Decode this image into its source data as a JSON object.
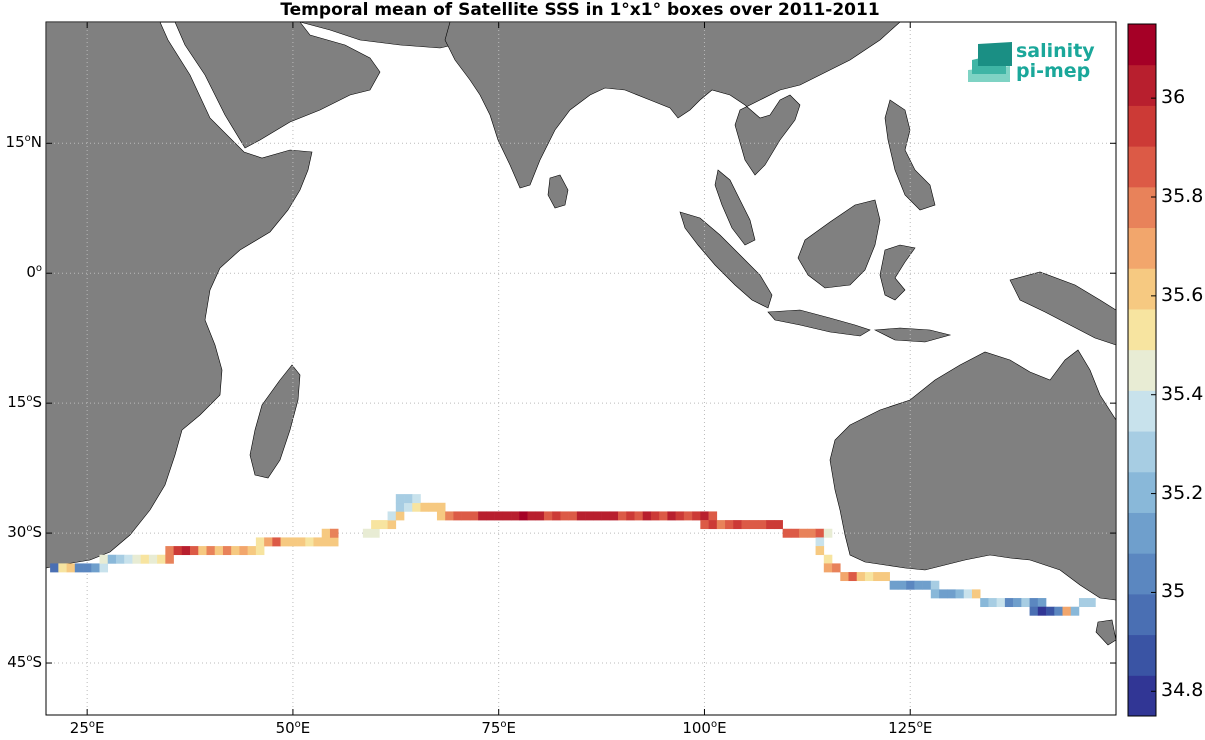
{
  "title": "Temporal mean of Satellite SSS in 1°x1° boxes over 2011-2011",
  "logo": {
    "line1": "salinity",
    "line2": "pi-mep"
  },
  "lat_ticks": [
    {
      "label": "15",
      "sup": "o",
      "hemi": "N",
      "lat": 15
    },
    {
      "label": "0",
      "sup": "o",
      "hemi": "",
      "lat": 0
    },
    {
      "label": "15",
      "sup": "o",
      "hemi": "S",
      "lat": -15
    },
    {
      "label": "30",
      "sup": "o",
      "hemi": "S",
      "lat": -30
    },
    {
      "label": "45",
      "sup": "o",
      "hemi": "S",
      "lat": -45
    }
  ],
  "lon_ticks": [
    {
      "label": "25",
      "sup": "o",
      "hemi": "E",
      "lon": 25
    },
    {
      "label": "50",
      "sup": "o",
      "hemi": "E",
      "lon": 50
    },
    {
      "label": "75",
      "sup": "o",
      "hemi": "E",
      "lon": 75
    },
    {
      "label": "100",
      "sup": "o",
      "hemi": "E",
      "lon": 100
    },
    {
      "label": "125",
      "sup": "o",
      "hemi": "E",
      "lon": 125
    }
  ],
  "colorbar": {
    "min": 34.75,
    "max": 36.15,
    "tick_labels": [
      "34.8",
      "35",
      "35.2",
      "35.4",
      "35.6",
      "35.8",
      "36"
    ],
    "tick_values": [
      34.8,
      35.0,
      35.2,
      35.4,
      35.6,
      35.8,
      36.0
    ],
    "colors": [
      "#313695",
      "#3a54a4",
      "#4a6fb3",
      "#5b87c0",
      "#6f9fcc",
      "#89b8d9",
      "#a7cde3",
      "#c8e2ec",
      "#e8ecd4",
      "#f7e4a0",
      "#f6c981",
      "#f2a66c",
      "#e8825a",
      "#dc5a46",
      "#cc3a36",
      "#b81f2e",
      "#a50026"
    ]
  },
  "land_color": "#808080",
  "chart_data": {
    "type": "heatmap",
    "title": "Temporal mean of Satellite SSS in 1°x1° boxes over 2011-2011",
    "xlabel": "",
    "ylabel": "",
    "xlim": [
      20,
      150
    ],
    "ylim": [
      -51,
      29
    ],
    "colorbar_range": [
      34.75,
      36.15
    ],
    "units_note": "",
    "cells": [
      {
        "lon": 21,
        "lat": -34,
        "v": 34.95
      },
      {
        "lon": 22,
        "lat": -34,
        "v": 35.55
      },
      {
        "lon": 23,
        "lat": -34,
        "v": 35.65
      },
      {
        "lon": 24,
        "lat": -34,
        "v": 35.0
      },
      {
        "lon": 25,
        "lat": -34,
        "v": 35.0
      },
      {
        "lon": 26,
        "lat": -34,
        "v": 35.1
      },
      {
        "lon": 27,
        "lat": -34,
        "v": 35.4
      },
      {
        "lon": 27,
        "lat": -33,
        "v": 35.45
      },
      {
        "lon": 28,
        "lat": -33,
        "v": 35.2
      },
      {
        "lon": 29,
        "lat": -33,
        "v": 35.3
      },
      {
        "lon": 30,
        "lat": -33,
        "v": 35.35
      },
      {
        "lon": 31,
        "lat": -33,
        "v": 35.45
      },
      {
        "lon": 32,
        "lat": -33,
        "v": 35.5
      },
      {
        "lon": 33,
        "lat": -33,
        "v": 35.45
      },
      {
        "lon": 34,
        "lat": -33,
        "v": 35.55
      },
      {
        "lon": 35,
        "lat": -33,
        "v": 35.75
      },
      {
        "lon": 35,
        "lat": -32,
        "v": 35.8
      },
      {
        "lon": 36,
        "lat": -32,
        "v": 35.95
      },
      {
        "lon": 37,
        "lat": -32,
        "v": 36.05
      },
      {
        "lon": 38,
        "lat": -32,
        "v": 35.85
      },
      {
        "lon": 39,
        "lat": -32,
        "v": 35.6
      },
      {
        "lon": 40,
        "lat": -32,
        "v": 35.75
      },
      {
        "lon": 41,
        "lat": -32,
        "v": 35.65
      },
      {
        "lon": 42,
        "lat": -32,
        "v": 35.8
      },
      {
        "lon": 43,
        "lat": -32,
        "v": 35.6
      },
      {
        "lon": 44,
        "lat": -32,
        "v": 35.7
      },
      {
        "lon": 45,
        "lat": -32,
        "v": 35.6
      },
      {
        "lon": 46,
        "lat": -32,
        "v": 35.55
      },
      {
        "lon": 46,
        "lat": -31,
        "v": 35.5
      },
      {
        "lon": 47,
        "lat": -31,
        "v": 35.7
      },
      {
        "lon": 48,
        "lat": -31,
        "v": 35.9
      },
      {
        "lon": 49,
        "lat": -31,
        "v": 35.65
      },
      {
        "lon": 50,
        "lat": -31,
        "v": 35.6
      },
      {
        "lon": 51,
        "lat": -31,
        "v": 35.65
      },
      {
        "lon": 52,
        "lat": -31,
        "v": 35.55
      },
      {
        "lon": 53,
        "lat": -31,
        "v": 35.6
      },
      {
        "lon": 54,
        "lat": -31,
        "v": 35.65
      },
      {
        "lon": 55,
        "lat": -31,
        "v": 35.6
      },
      {
        "lon": 54,
        "lat": -30,
        "v": 35.65
      },
      {
        "lon": 55,
        "lat": -30,
        "v": 35.75
      },
      {
        "lon": 59,
        "lat": -30,
        "v": 35.45
      },
      {
        "lon": 60,
        "lat": -30,
        "v": 35.45
      },
      {
        "lon": 60,
        "lat": -29,
        "v": 35.5
      },
      {
        "lon": 61,
        "lat": -29,
        "v": 35.55
      },
      {
        "lon": 62,
        "lat": -29,
        "v": 35.6
      },
      {
        "lon": 62,
        "lat": -28,
        "v": 35.35
      },
      {
        "lon": 63,
        "lat": -28,
        "v": 35.6
      },
      {
        "lon": 63,
        "lat": -27,
        "v": 35.3
      },
      {
        "lon": 64,
        "lat": -27,
        "v": 35.35
      },
      {
        "lon": 65,
        "lat": -27,
        "v": 35.55
      },
      {
        "lon": 66,
        "lat": -27,
        "v": 35.6
      },
      {
        "lon": 67,
        "lat": -27,
        "v": 35.6
      },
      {
        "lon": 68,
        "lat": -27,
        "v": 35.6
      },
      {
        "lon": 63,
        "lat": -26,
        "v": 35.3
      },
      {
        "lon": 64,
        "lat": -26,
        "v": 35.3
      },
      {
        "lon": 65,
        "lat": -26,
        "v": 35.35
      },
      {
        "lon": 68,
        "lat": -28,
        "v": 35.65
      },
      {
        "lon": 69,
        "lat": -28,
        "v": 35.8
      },
      {
        "lon": 70,
        "lat": -28,
        "v": 35.9
      },
      {
        "lon": 71,
        "lat": -28,
        "v": 35.85
      },
      {
        "lon": 72,
        "lat": -28,
        "v": 35.9
      },
      {
        "lon": 73,
        "lat": -28,
        "v": 36.0
      },
      {
        "lon": 74,
        "lat": -28,
        "v": 36.05
      },
      {
        "lon": 75,
        "lat": -28,
        "v": 36.0
      },
      {
        "lon": 76,
        "lat": -28,
        "v": 36.05
      },
      {
        "lon": 77,
        "lat": -28,
        "v": 36.05
      },
      {
        "lon": 78,
        "lat": -28,
        "v": 36.1
      },
      {
        "lon": 79,
        "lat": -28,
        "v": 36.05
      },
      {
        "lon": 80,
        "lat": -28,
        "v": 36.0
      },
      {
        "lon": 81,
        "lat": -28,
        "v": 35.9
      },
      {
        "lon": 82,
        "lat": -28,
        "v": 35.95
      },
      {
        "lon": 83,
        "lat": -28,
        "v": 35.85
      },
      {
        "lon": 84,
        "lat": -28,
        "v": 35.9
      },
      {
        "lon": 85,
        "lat": -28,
        "v": 36.0
      },
      {
        "lon": 86,
        "lat": -28,
        "v": 36.0
      },
      {
        "lon": 87,
        "lat": -28,
        "v": 36.05
      },
      {
        "lon": 88,
        "lat": -28,
        "v": 36.05
      },
      {
        "lon": 89,
        "lat": -28,
        "v": 36.0
      },
      {
        "lon": 90,
        "lat": -28,
        "v": 35.9
      },
      {
        "lon": 91,
        "lat": -28,
        "v": 35.95
      },
      {
        "lon": 92,
        "lat": -28,
        "v": 35.9
      },
      {
        "lon": 93,
        "lat": -28,
        "v": 36.0
      },
      {
        "lon": 94,
        "lat": -28,
        "v": 35.95
      },
      {
        "lon": 95,
        "lat": -28,
        "v": 35.9
      },
      {
        "lon": 96,
        "lat": -28,
        "v": 36.0
      },
      {
        "lon": 97,
        "lat": -28,
        "v": 35.95
      },
      {
        "lon": 98,
        "lat": -28,
        "v": 35.9
      },
      {
        "lon": 99,
        "lat": -28,
        "v": 35.95
      },
      {
        "lon": 100,
        "lat": -28,
        "v": 36.0
      },
      {
        "lon": 101,
        "lat": -28,
        "v": 35.85
      },
      {
        "lon": 100,
        "lat": -29,
        "v": 35.85
      },
      {
        "lon": 101,
        "lat": -29,
        "v": 35.95
      },
      {
        "lon": 102,
        "lat": -29,
        "v": 35.8
      },
      {
        "lon": 103,
        "lat": -29,
        "v": 35.85
      },
      {
        "lon": 104,
        "lat": -29,
        "v": 35.95
      },
      {
        "lon": 105,
        "lat": -29,
        "v": 35.9
      },
      {
        "lon": 106,
        "lat": -29,
        "v": 35.85
      },
      {
        "lon": 107,
        "lat": -29,
        "v": 35.9
      },
      {
        "lon": 108,
        "lat": -29,
        "v": 35.95
      },
      {
        "lon": 109,
        "lat": -29,
        "v": 35.95
      },
      {
        "lon": 110,
        "lat": -30,
        "v": 35.85
      },
      {
        "lon": 111,
        "lat": -30,
        "v": 35.9
      },
      {
        "lon": 112,
        "lat": -30,
        "v": 35.8
      },
      {
        "lon": 113,
        "lat": -30,
        "v": 35.75
      },
      {
        "lon": 114,
        "lat": -30,
        "v": 35.9
      },
      {
        "lon": 115,
        "lat": -30,
        "v": 35.45
      },
      {
        "lon": 114,
        "lat": -31,
        "v": 35.4
      },
      {
        "lon": 114,
        "lat": -32,
        "v": 35.6
      },
      {
        "lon": 115,
        "lat": -33,
        "v": 35.55
      },
      {
        "lon": 115,
        "lat": -34,
        "v": 35.7
      },
      {
        "lon": 116,
        "lat": -34,
        "v": 35.8
      },
      {
        "lon": 117,
        "lat": -35,
        "v": 35.7
      },
      {
        "lon": 118,
        "lat": -35,
        "v": 35.85
      },
      {
        "lon": 119,
        "lat": -35,
        "v": 35.6
      },
      {
        "lon": 120,
        "lat": -35,
        "v": 35.55
      },
      {
        "lon": 121,
        "lat": -35,
        "v": 35.6
      },
      {
        "lon": 122,
        "lat": -35,
        "v": 35.65
      },
      {
        "lon": 123,
        "lat": -36,
        "v": 35.15
      },
      {
        "lon": 124,
        "lat": -36,
        "v": 35.1
      },
      {
        "lon": 125,
        "lat": -36,
        "v": 35.05
      },
      {
        "lon": 126,
        "lat": -36,
        "v": 35.1
      },
      {
        "lon": 127,
        "lat": -36,
        "v": 35.15
      },
      {
        "lon": 128,
        "lat": -36,
        "v": 35.25
      },
      {
        "lon": 128,
        "lat": -37,
        "v": 35.2
      },
      {
        "lon": 129,
        "lat": -37,
        "v": 35.1
      },
      {
        "lon": 130,
        "lat": -37,
        "v": 35.15
      },
      {
        "lon": 131,
        "lat": -37,
        "v": 35.2
      },
      {
        "lon": 132,
        "lat": -37,
        "v": 35.35
      },
      {
        "lon": 133,
        "lat": -37,
        "v": 35.65
      },
      {
        "lon": 134,
        "lat": -38,
        "v": 35.2
      },
      {
        "lon": 135,
        "lat": -38,
        "v": 35.3
      },
      {
        "lon": 136,
        "lat": -38,
        "v": 35.35
      },
      {
        "lon": 137,
        "lat": -38,
        "v": 35.05
      },
      {
        "lon": 138,
        "lat": -38,
        "v": 35.15
      },
      {
        "lon": 139,
        "lat": -38,
        "v": 35.3
      },
      {
        "lon": 140,
        "lat": -38,
        "v": 35.0
      },
      {
        "lon": 141,
        "lat": -38,
        "v": 35.15
      },
      {
        "lon": 140,
        "lat": -39,
        "v": 34.95
      },
      {
        "lon": 141,
        "lat": -39,
        "v": 34.8
      },
      {
        "lon": 142,
        "lat": -39,
        "v": 34.9
      },
      {
        "lon": 143,
        "lat": -39,
        "v": 35.0
      },
      {
        "lon": 144,
        "lat": -39,
        "v": 35.7
      },
      {
        "lon": 145,
        "lat": -39,
        "v": 35.2
      },
      {
        "lon": 146,
        "lat": -38,
        "v": 35.25
      },
      {
        "lon": 147,
        "lat": -38,
        "v": 35.3
      }
    ]
  }
}
